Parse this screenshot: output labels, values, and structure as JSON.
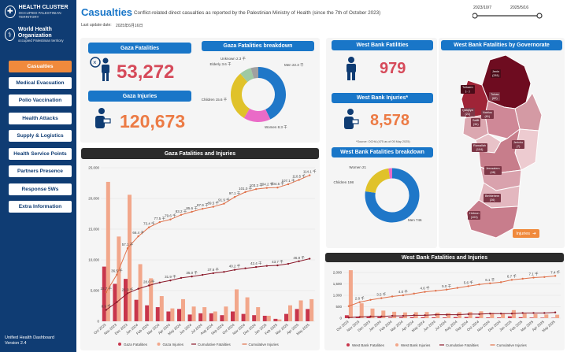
{
  "sidebar": {
    "org1_title": "HEALTH CLUSTER",
    "org1_sub": "OCCUPIED PALESTINIAN TERRITORY",
    "org2_title": "World Health Organization",
    "org2_sub": "occupied Palestinian territory",
    "items": [
      {
        "label": "Casualties"
      },
      {
        "label": "Medical Evacuation"
      },
      {
        "label": "Polio Vaccination"
      },
      {
        "label": "Health Attacks"
      },
      {
        "label": "Supply & Logistics"
      },
      {
        "label": "Health Service Points"
      },
      {
        "label": "Partners Presence"
      },
      {
        "label": "Response 5Ws"
      },
      {
        "label": "Extra Information"
      }
    ],
    "version_line1": "Unified Health Dashboard",
    "version_line2": "Version 2.4"
  },
  "header": {
    "title": "Casualties",
    "subtitle": "Conflict-related direct casualties as reported by the Palestinian Ministry of Health (since the 7th of October 2023)",
    "last_update_label": "Last update date:",
    "last_update_value": "2025年6月16日",
    "date_from": "2023/10/7",
    "date_to": "2025/5/16"
  },
  "gaza": {
    "fatalities_label": "Gaza Fatalities",
    "fatalities_value": "53,272",
    "injuries_label": "Gaza Injuries",
    "injuries_value": "120,673",
    "breakdown_title": "Gaza Fatalities breakdown",
    "breakdown_labels": [
      "Unknown 2.3 千",
      "Elderly 3.6 千",
      "Men 22.3 千",
      "Children 15.6 千",
      "Women 8.3 千"
    ]
  },
  "westbank": {
    "fatalities_label": "West Bank Fatilities",
    "fatalities_value": "979",
    "injuries_label": "West Bank Injuries*",
    "injuries_value": "8,578",
    "injuries_note": "*Source: OCHA (475 as of 05 May 2025)",
    "breakdown_title": "West Bank Fatalities breakdown",
    "breakdown_labels": [
      "Women 21",
      "Children 198",
      "Men 746"
    ],
    "map_title": "West Bank Fatalities by Governorate",
    "map_button": "Injuries",
    "governorates": [
      {
        "name": "Jenin",
        "value": "(281)"
      },
      {
        "name": "Tulkarm",
        "value": "(...)"
      },
      {
        "name": "Tubas",
        "value": "(62)"
      },
      {
        "name": "Nablus",
        "value": "(61)"
      },
      {
        "name": "Qalqilya",
        "value": "(21)"
      },
      {
        "name": "Salfit",
        "value": "(34)"
      },
      {
        "name": "Jericho",
        "value": "(7)"
      },
      {
        "name": "Ramallah",
        "value": "(104)"
      },
      {
        "name": "Jerusalem",
        "value": "(48)"
      },
      {
        "name": "Bethlehem",
        "value": "(26)"
      },
      {
        "name": "Hebron",
        "value": "(103)"
      }
    ]
  },
  "colors": {
    "navy": "#0f3c73",
    "blue": "#1976c8",
    "accent": "#f08a3c",
    "red": "#d64a5a",
    "dark": "#8b1a2b"
  },
  "chart_data": [
    {
      "type": "bar",
      "title": "Gaza Fatalities and Injuries",
      "categories": [
        "Oct 2023",
        "Nov 2023",
        "Dec 2023",
        "Jan 2024",
        "Feb 2024",
        "Mar 2024",
        "Apr 2024",
        "May 2024",
        "Jun 2024",
        "Jul 2024",
        "Aug 2024",
        "Sep 2024",
        "Oct 2024",
        "Nov 2024",
        "Dec 2024",
        "Jan 2025",
        "Feb 2025",
        "Mar 2025",
        "Apr 2025",
        "May 2025"
      ],
      "ylim": [
        0,
        25000
      ],
      "yticks": [
        "0",
        "5,000",
        "10,000",
        "15,000",
        "20,000",
        "25,000"
      ],
      "series": [
        {
          "name": "Gaza Fatalities",
          "kind": "bar",
          "values": [
            8900,
            6100,
            6900,
            3500,
            2600,
            2300,
            1600,
            2000,
            1100,
            1300,
            1300,
            1000,
            1600,
            1200,
            1000,
            900,
            400,
            1200,
            2000,
            2000
          ]
        },
        {
          "name": "Gaza Injuries",
          "kind": "bar",
          "values": [
            22700,
            13800,
            20600,
            9300,
            7000,
            4100,
            2100,
            3600,
            2400,
            2300,
            1600,
            2400,
            5200,
            3900,
            2300,
            900,
            300,
            2600,
            3400,
            3600
          ]
        },
        {
          "name": "Cumulative Fatalities",
          "kind": "line",
          "values": [
            8.9,
            15.0,
            21.9,
            25.4,
            28.0,
            30.3,
            31.9,
            33.9,
            35.0,
            36.3,
            37.6,
            38.6,
            40.2,
            41.4,
            42.4,
            43.3,
            43.7,
            44.9,
            46.9,
            48.9
          ]
        },
        {
          "name": "Cumulative Injuries",
          "kind": "line",
          "values": [
            22.7,
            36.5,
            57.1,
            66.4,
            73.4,
            77.5,
            79.6,
            83.2,
            85.6,
            87.9,
            89.5,
            91.9,
            97.1,
            101.0,
            103.3,
            104.2,
            104.5,
            107.1,
            110.5,
            114.1
          ]
        }
      ],
      "point_labels_fatalities": [
        "8.9 千",
        "15.0 千",
        "21.9 千",
        "25.4 千",
        "28.0 千",
        "30.3 千",
        "31.9 千",
        "33.9 千",
        "35.0 千",
        "36.3 千",
        "37.6 千",
        "38.6 千",
        "40.2 千",
        "41.4 千",
        "42.4 千",
        "43.3 千",
        "43.7 千",
        "44.9 千",
        "46.9 千",
        "48.9 千"
      ],
      "point_labels_injuries": [
        "22.7 千",
        "36.5 千",
        "57.1 千",
        "66.4 千",
        "73.4 千",
        "77.5 千",
        "79.6 千",
        "83.2 千",
        "85.6 千",
        "87.9 千",
        "89.5 千",
        "91.9 千",
        "97.1 千",
        "101.0 千",
        "103.3 千",
        "104.2 千",
        "104.5 千",
        "107.1 千",
        "110.5 千",
        "114.1 千"
      ]
    },
    {
      "type": "bar",
      "title": "West Bank Fatalities and Injuries",
      "categories": [
        "Oct 2023",
        "Nov 2023",
        "Dec 2023",
        "Jan 2024",
        "Feb 2024",
        "Mar 2024",
        "Apr 2024",
        "May 2024",
        "Jun 2024",
        "Jul 2024",
        "Aug 2024",
        "Sep 2024",
        "Oct 2024",
        "Nov 2024",
        "Dec 2024",
        "Jan 2025",
        "Feb 2025",
        "Mar 2025",
        "Apr 2025",
        "May 2025"
      ],
      "ylim": [
        0,
        2000
      ],
      "yticks": [
        "0",
        "500",
        "1,000",
        "1,500",
        "2,000"
      ],
      "series": [
        {
          "name": "West Bank Fatalities",
          "kind": "bar",
          "values": [
            127,
            70,
            60,
            55,
            30,
            40,
            45,
            40,
            35,
            30,
            45,
            50,
            55,
            30,
            30,
            80,
            40,
            25,
            20,
            15
          ]
        },
        {
          "name": "West Bank Injuries",
          "kind": "bar",
          "values": [
            2100,
            650,
            420,
            330,
            280,
            250,
            260,
            270,
            240,
            220,
            260,
            270,
            300,
            230,
            220,
            350,
            200,
            180,
            160,
            150
          ]
        },
        {
          "name": "Cumulative Fatalities",
          "kind": "line",
          "values": [
            0.1,
            0.2,
            0.3,
            0.3,
            0.4,
            0.4,
            0.5,
            0.5,
            0.6,
            0.6,
            0.6,
            0.7,
            0.7,
            0.8,
            0.8,
            0.8,
            0.9,
            0.9,
            0.9,
            1.0
          ]
        },
        {
          "name": "Cumulative Injuries",
          "kind": "line",
          "values": [
            2.1,
            2.8,
            3.2,
            3.5,
            3.8,
            4.0,
            4.3,
            4.6,
            4.8,
            5.0,
            5.3,
            5.6,
            5.9,
            6.1,
            6.3,
            6.7,
            6.9,
            7.1,
            7.2,
            7.4
          ]
        }
      ],
      "point_labels_injuries": [
        "",
        "2.8 千",
        "",
        "3.5 千",
        "",
        "4.0 千",
        "",
        "4.6 千",
        "",
        "5.0 千",
        "",
        "5.6 千",
        "",
        "6.1 千",
        "",
        "6.7 千",
        "",
        "7.1 千",
        "",
        "7.4 千"
      ]
    }
  ]
}
